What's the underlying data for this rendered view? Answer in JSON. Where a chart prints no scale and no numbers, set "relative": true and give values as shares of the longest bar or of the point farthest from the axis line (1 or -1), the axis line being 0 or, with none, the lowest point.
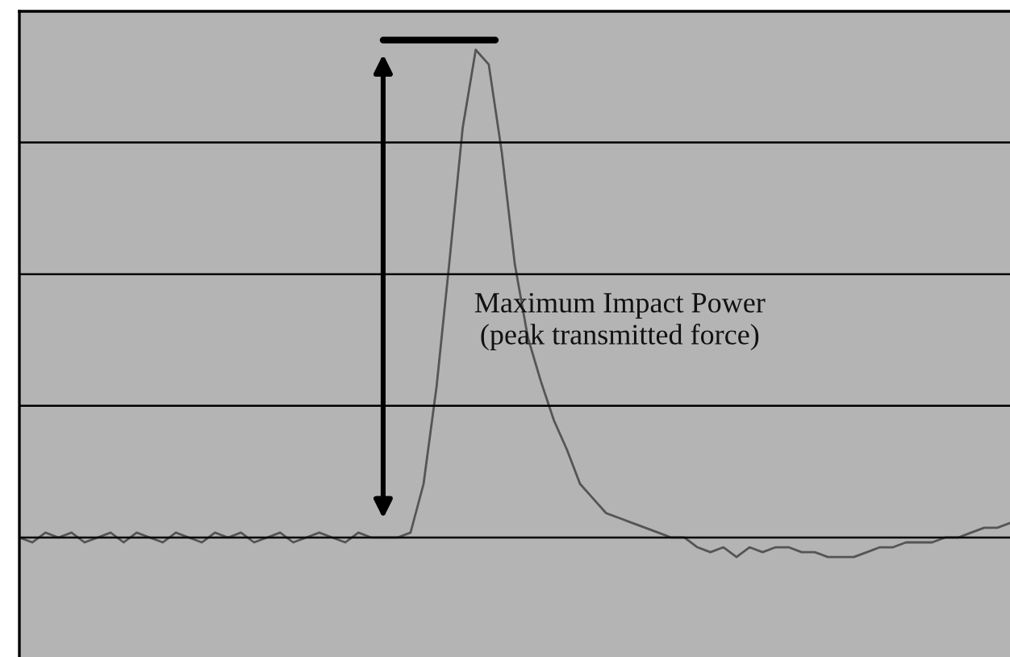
{
  "chart_data": {
    "type": "line",
    "relative": true,
    "grid": "y",
    "categories": [
      null,
      null,
      null,
      null,
      null,
      null,
      null,
      null,
      null,
      null,
      null,
      null,
      null,
      null,
      null,
      null,
      null,
      null,
      null,
      null,
      null,
      null,
      null,
      null,
      null,
      null,
      null,
      null,
      null,
      null,
      null,
      null,
      null,
      null,
      null,
      null,
      null,
      null,
      null,
      null,
      null,
      null,
      null,
      null,
      null,
      null,
      null,
      null,
      null,
      null,
      null,
      null,
      null,
      null,
      null,
      null,
      null,
      null,
      null,
      null,
      null,
      null,
      null,
      null,
      null,
      null,
      null,
      null,
      null,
      null,
      null,
      null,
      null,
      null,
      null,
      null,
      null
    ],
    "series": [
      {
        "color": "#555555",
        "values": [
          0,
          -0.01,
          0.01,
          0,
          0.01,
          -0.01,
          0,
          0.01,
          -0.01,
          0.01,
          0,
          -0.01,
          0.01,
          0,
          -0.01,
          0.01,
          0,
          0.01,
          -0.01,
          0,
          0.01,
          -0.01,
          0,
          0.01,
          0,
          -0.01,
          0.01,
          0,
          0,
          0,
          0.01,
          0.11,
          0.31,
          0.57,
          0.84,
          1,
          0.97,
          0.79,
          0.56,
          0.41,
          0.32,
          0.24,
          0.18,
          0.11,
          0.08,
          0.05,
          0.04,
          0.03,
          0.02,
          0.01,
          0,
          0,
          -0.02,
          -0.03,
          -0.02,
          -0.04,
          -0.02,
          -0.03,
          -0.02,
          -0.02,
          -0.03,
          -0.03,
          -0.04,
          -0.04,
          -0.04,
          -0.03,
          -0.02,
          -0.02,
          -0.01,
          -0.01,
          -0.01,
          0,
          0,
          0.01,
          0.02,
          0.02,
          0.03
        ]
      }
    ],
    "annotations": [
      "Maximum Impact Power\n(peak transmitted force)"
    ]
  }
}
